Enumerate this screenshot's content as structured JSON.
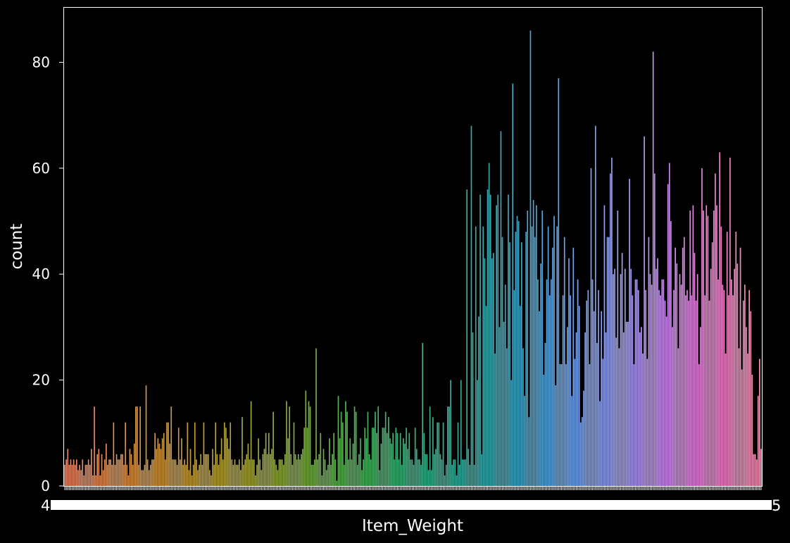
{
  "chart_data": {
    "type": "bar",
    "title": "",
    "xlabel": "Item_Weight",
    "ylabel": "count",
    "ylim": [
      0,
      90.3
    ],
    "yticks": [
      0,
      20,
      40,
      60,
      80
    ],
    "ytick_labels": [
      "0",
      "20",
      "40",
      "60",
      "80"
    ],
    "x_tick_label_left": "4",
    "x_tick_label_right": "5",
    "grid": false,
    "legend": "none",
    "colors": {
      "background": "#000000",
      "axes": "#ffffff",
      "text": "#ffffff",
      "palette_start": "#f0867a",
      "palette_mid": "#3fb07c",
      "palette_blue": "#6ba8e8",
      "palette_end": "#f49bb9"
    },
    "series": [
      {
        "values": [
          4,
          5,
          7,
          4,
          5,
          4,
          5,
          4,
          5,
          3,
          4,
          3,
          5,
          2,
          4,
          4,
          5,
          4,
          7,
          2,
          15,
          2,
          6,
          7,
          2,
          6,
          3,
          5,
          8,
          4,
          5,
          5,
          4,
          12,
          4,
          6,
          5,
          5,
          6,
          6,
          4,
          12,
          4,
          2,
          7,
          6,
          4,
          8,
          15,
          15,
          4,
          15,
          3,
          3,
          4,
          19,
          5,
          3,
          4,
          5,
          5,
          10,
          7,
          9,
          8,
          7,
          9,
          10,
          5,
          12,
          12,
          8,
          15,
          5,
          5,
          5,
          4,
          11,
          5,
          9,
          4,
          5,
          4,
          12,
          3,
          7,
          2,
          4,
          12,
          5,
          3,
          4,
          6,
          4,
          12,
          6,
          6,
          6,
          3,
          2,
          7,
          4,
          12,
          6,
          4,
          6,
          9,
          5,
          12,
          11,
          9,
          7,
          12,
          5,
          4,
          5,
          4,
          4,
          5,
          3,
          13,
          4,
          5,
          6,
          8,
          5,
          16,
          5,
          5,
          2,
          4,
          9,
          5,
          3,
          6,
          7,
          10,
          6,
          10,
          6,
          7,
          14,
          5,
          4,
          3,
          5,
          5,
          5,
          4,
          6,
          16,
          9,
          15,
          6,
          4,
          12,
          6,
          5,
          6,
          5,
          6,
          7,
          11,
          18,
          11,
          16,
          15,
          4,
          4,
          5,
          26,
          5,
          6,
          10,
          2,
          7,
          5,
          3,
          4,
          9,
          4,
          6,
          10,
          5,
          1,
          17,
          9,
          14,
          12,
          4,
          16,
          14,
          5,
          9,
          5,
          8,
          15,
          14,
          4,
          6,
          9,
          3,
          5,
          11,
          9,
          14,
          6,
          5,
          11,
          11,
          14,
          10,
          15,
          3,
          8,
          11,
          11,
          14,
          10,
          13,
          9,
          8,
          10,
          5,
          11,
          10,
          5,
          10,
          4,
          9,
          8,
          11,
          7,
          10,
          5,
          5,
          4,
          11,
          7,
          5,
          5,
          4,
          27,
          10,
          6,
          6,
          3,
          15,
          3,
          13,
          6,
          7,
          12,
          12,
          6,
          5,
          12,
          2,
          4,
          15,
          15,
          20,
          4,
          5,
          5,
          2,
          12,
          4,
          20,
          5,
          5,
          5,
          56,
          7,
          4,
          68,
          29,
          4,
          49,
          20,
          32,
          55,
          6,
          49,
          43,
          34,
          56,
          61,
          55,
          43,
          44,
          25,
          53,
          55,
          30,
          67,
          47,
          31,
          38,
          26,
          55,
          46,
          20,
          76,
          37,
          48,
          51,
          50,
          34,
          46,
          26,
          17,
          48,
          52,
          13,
          86,
          49,
          54,
          47,
          53,
          39,
          33,
          42,
          52,
          21,
          27,
          39,
          49,
          36,
          39,
          45,
          51,
          19,
          49,
          77,
          23,
          23,
          36,
          47,
          23,
          30,
          43,
          36,
          17,
          45,
          24,
          29,
          39,
          34,
          12,
          13,
          18,
          29,
          35,
          37,
          23,
          60,
          39,
          33,
          68,
          27,
          37,
          16,
          33,
          24,
          53,
          29,
          47,
          47,
          59,
          62,
          40,
          41,
          28,
          52,
          26,
          40,
          44,
          29,
          41,
          31,
          31,
          58,
          41,
          36,
          23,
          39,
          39,
          37,
          29,
          30,
          25,
          66,
          37,
          24,
          47,
          40,
          38,
          82,
          59,
          41,
          43,
          37,
          36,
          39,
          39,
          35,
          32,
          57,
          61,
          50,
          30,
          37,
          45,
          42,
          26,
          40,
          38,
          45,
          47,
          36,
          37,
          35,
          52,
          36,
          53,
          44,
          35,
          40,
          23,
          30,
          60,
          52,
          36,
          53,
          51,
          35,
          41,
          46,
          52,
          59,
          53,
          39,
          63,
          49,
          38,
          37,
          25,
          48,
          36,
          62,
          39,
          36,
          41,
          48,
          42,
          26,
          45,
          22,
          35,
          38,
          30,
          25,
          37,
          33,
          21,
          6,
          6,
          5,
          17,
          24,
          7
        ]
      }
    ]
  }
}
